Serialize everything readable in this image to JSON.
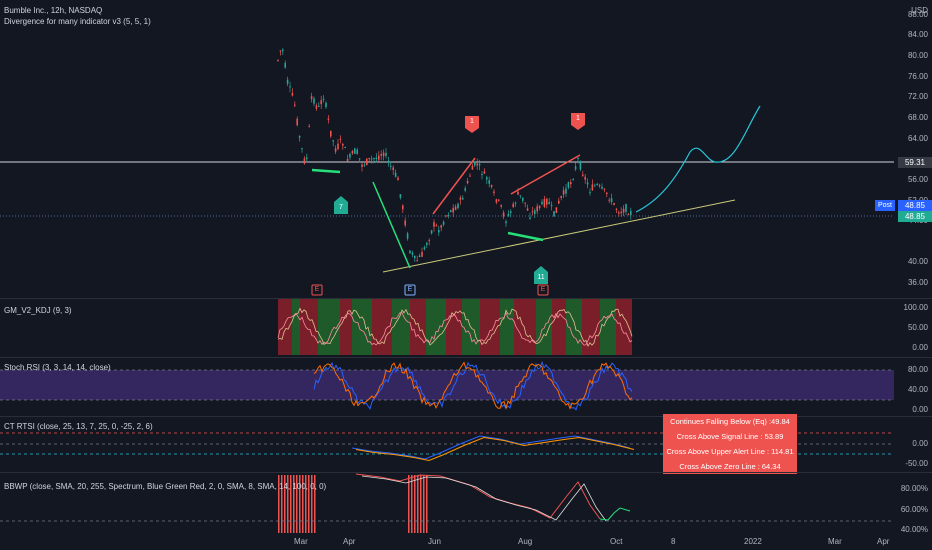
{
  "header": {
    "symbol_line": "Bumble Inc., 12h, NASDAQ",
    "indicator_line": "Divergence for many indicator v3 (5, 5, 1)",
    "currency": "USD"
  },
  "price_axis": [
    "88.00",
    "84.00",
    "80.00",
    "76.00",
    "72.00",
    "68.00",
    "64.00",
    "60.00",
    "56.00",
    "52.00",
    "48.00",
    "44.00",
    "40.00",
    "36.00"
  ],
  "price_badges": {
    "level_line": "59.31",
    "post_label": "Post",
    "post_price": "48.85",
    "last_price": "48.85"
  },
  "markers": {
    "top_left": "1",
    "top_right": "1",
    "bottom_left": "7",
    "bottom_right": "11",
    "earnings": [
      "E",
      "E",
      "E"
    ]
  },
  "panes": {
    "kdj": {
      "legend": "GM_V2_KDJ (9, 3)",
      "ticks": [
        "100.00",
        "50.00",
        "0.00"
      ]
    },
    "stoch": {
      "legend": "Stoch RSI (3, 3, 14, 14, close)",
      "ticks": [
        "80.00",
        "40.00",
        "0.00"
      ]
    },
    "ctrtsi": {
      "legend": "CT RTSI (close, 25, 13, 7, 25, 0, -25, 2, 6)",
      "ticks": [
        "0.00",
        "-50.00"
      ]
    },
    "bbwp": {
      "legend": "BBWP (close, SMA, 20, 255, Spectrum, Blue Green Red, 2, 0, SMA, 8, SMA, 14, 100, 0, 0)",
      "ticks": [
        "80.00%",
        "60.00%",
        "40.00%"
      ]
    }
  },
  "alerts": [
    "Continues Falling Below (Eq) :49.84",
    "Cross Above Signal Line : 53.89",
    "Cross Above Upper Alert Line : 114.81",
    "Cross Above Zero Line : 64.34"
  ],
  "time_axis": [
    "Mar",
    "Apr",
    "Jun",
    "Aug",
    "Oct",
    "8",
    "2022",
    "Mar",
    "Apr"
  ],
  "colors": {
    "background": "#131722",
    "up": "#26a69a",
    "down": "#ef5350",
    "projection": "#26c6da",
    "alert": "#ef5350"
  }
}
